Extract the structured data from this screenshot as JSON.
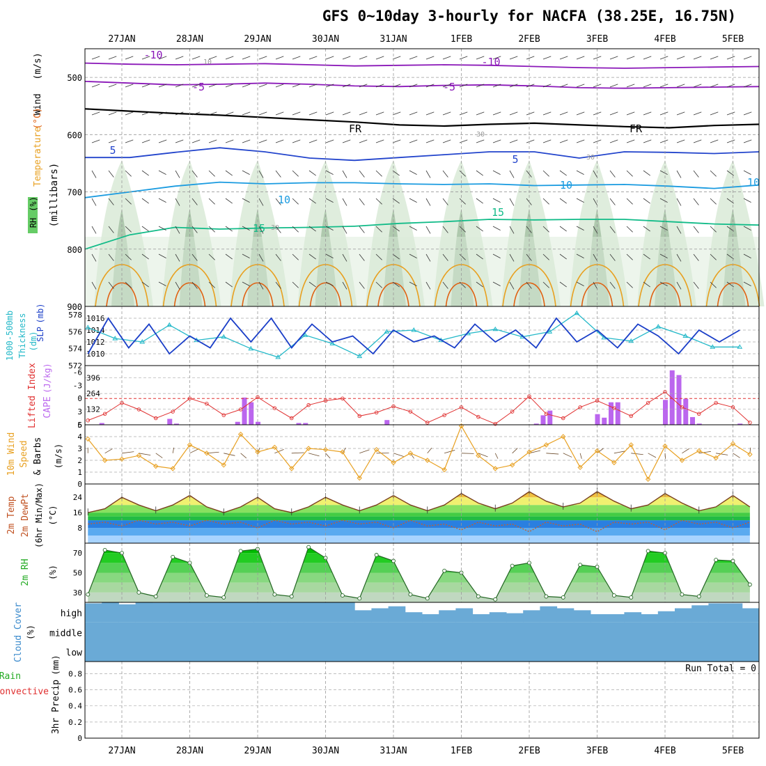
{
  "title": "GFS 0~10day 3-hourly for NACFA (38.25E, 16.75N)",
  "date_labels": [
    "27JAN",
    "28JAN",
    "29JAN",
    "30JAN",
    "31JAN",
    "1FEB",
    "2FEB",
    "3FEB",
    "4FEB",
    "5FEB"
  ],
  "colors": {
    "rh_fill": "#dcebd9",
    "rh_mid": "#8fb08f",
    "rh_high": "#66cc66",
    "temp_purple": "#8a17b8",
    "temp_blue": "#2244cc",
    "temp_cyan": "#1a9be0",
    "temp_green": "#11bb88",
    "temp_orange": "#e8a020",
    "temp_red": "#e06010",
    "thickness": "#22b8c8",
    "slp": "#1a3ec8",
    "lifted": "#e03030",
    "cape": "#bb66ee",
    "wind10": "#e8a020",
    "cloud": "#6aaad6",
    "dewpt": "#c06030"
  },
  "chart_data": [
    {
      "type": "contour",
      "name": "upper-air",
      "title": "",
      "panel_labels": [
        "Wind",
        "(m/s)",
        "Temperature",
        "(°C)",
        "RH",
        "(%)",
        "(millibars)"
      ],
      "yaxis_label": "(millibars)",
      "ylim": [
        450,
        900
      ],
      "yticks": [
        500,
        600,
        700,
        800,
        900
      ],
      "inverted": true,
      "contour_labels": [
        "-10",
        "-10",
        "-5",
        "-5",
        "FR",
        "FR",
        "5",
        "5",
        "10",
        "10",
        "10",
        "15",
        "15",
        "30",
        "10",
        "30",
        "30"
      ],
      "isotherms": [
        {
          "label": "-10",
          "values": [
            475,
            477,
            478,
            477,
            476,
            478,
            480,
            479,
            478,
            479,
            481,
            483,
            484,
            483,
            482,
            481
          ]
        },
        {
          "label": "-5",
          "values": [
            507,
            510,
            513,
            512,
            510,
            512,
            515,
            516,
            514,
            513,
            515,
            518,
            519,
            518,
            517,
            516
          ]
        },
        {
          "label": "FR",
          "values": [
            555,
            559,
            563,
            566,
            570,
            574,
            578,
            583,
            585,
            582,
            580,
            583,
            586,
            588,
            584,
            582
          ]
        },
        {
          "label": "5",
          "values": [
            640,
            640,
            631,
            623,
            630,
            641,
            645,
            640,
            635,
            630,
            630,
            641,
            630,
            631,
            633,
            630
          ]
        },
        {
          "label": "10",
          "values": [
            710,
            700,
            690,
            683,
            686,
            684,
            684,
            686,
            687,
            686,
            689,
            688,
            687,
            690,
            694,
            688
          ]
        },
        {
          "label": "15",
          "values": [
            800,
            775,
            762,
            765,
            763,
            762,
            760,
            755,
            752,
            748,
            749,
            748,
            748,
            752,
            756,
            758
          ]
        }
      ],
      "x_days": [
        0.5,
        1.1,
        1.7,
        2.3,
        2.9,
        3.5,
        4.1,
        4.7,
        5.3,
        5.9,
        6.5,
        7.1,
        7.7,
        8.3,
        8.9,
        9.5
      ]
    },
    {
      "type": "line",
      "name": "thickness-slp",
      "panel_labels": [
        "1000-500mb",
        "Thickness",
        "(dm)",
        "SLP",
        "(mb)"
      ],
      "left_axis": {
        "label": "1000-500mb Thickness (dm)",
        "ylim": [
          572,
          579
        ],
        "ticks": [
          572,
          574,
          576,
          578
        ]
      },
      "right_axis": {
        "label": "SLP (mb)",
        "ylim": [
          1008,
          1018
        ],
        "ticks": [
          1010,
          1012,
          1014,
          1016
        ]
      },
      "series": [
        {
          "name": "Thickness",
          "axis": "left",
          "x_days": [
            0,
            0.4,
            0.8,
            1.2,
            1.6,
            2.0,
            2.4,
            2.8,
            3.2,
            3.6,
            4.0,
            4.4,
            4.8,
            5.2,
            5.6,
            6.0,
            6.4,
            6.8,
            7.2,
            7.6,
            8.0,
            8.4,
            8.8,
            9.2,
            9.6
          ],
          "values": [
            576.5,
            575.2,
            574.8,
            576.8,
            575.0,
            575.4,
            574.0,
            573.0,
            575.6,
            574.6,
            573.1,
            576.0,
            576.2,
            575.0,
            575.8,
            576.3,
            575.4,
            576.0,
            578.2,
            575.3,
            574.9,
            576.6,
            575.5,
            574.2,
            574.2
          ]
        },
        {
          "name": "SLP",
          "axis": "right",
          "x_days": [
            0,
            0.3,
            0.6,
            0.9,
            1.2,
            1.5,
            1.8,
            2.1,
            2.4,
            2.7,
            3.0,
            3.3,
            3.6,
            3.9,
            4.2,
            4.5,
            4.8,
            5.1,
            5.4,
            5.7,
            6.0,
            6.3,
            6.6,
            6.9,
            7.2,
            7.5,
            7.8,
            8.1,
            8.4,
            8.7,
            9.0,
            9.3,
            9.6
          ],
          "values": [
            1010,
            1016,
            1011,
            1015,
            1010,
            1013,
            1011,
            1016,
            1012,
            1016,
            1011,
            1015,
            1012,
            1013,
            1010,
            1014,
            1012,
            1013,
            1011,
            1015,
            1012,
            1014,
            1011,
            1016,
            1012,
            1014,
            1011,
            1015,
            1013,
            1010,
            1014,
            1012,
            1014
          ]
        }
      ]
    },
    {
      "type": "bar",
      "name": "lifted-cape",
      "panel_labels": [
        "Lifted Index",
        "CAPE",
        "(J/kg)"
      ],
      "left_axis": {
        "label": "Lifted Index",
        "ylim": [
          6,
          -7.5
        ],
        "ticks": [
          -6,
          -3,
          0,
          3,
          6
        ]
      },
      "right_axis": {
        "label": "CAPE (J/kg)",
        "ylim": [
          0,
          500
        ],
        "ticks": [
          132,
          264,
          396
        ]
      },
      "series": [
        {
          "name": "Lifted Index",
          "type": "line",
          "x_days": [
            0,
            0.25,
            0.5,
            0.75,
            1,
            1.25,
            1.5,
            1.75,
            2,
            2.25,
            2.5,
            2.75,
            3,
            3.25,
            3.5,
            3.75,
            4,
            4.25,
            4.5,
            4.75,
            5,
            5.25,
            5.5,
            5.75,
            6,
            6.25,
            6.5,
            6.75,
            7,
            7.25,
            7.5,
            7.75,
            8,
            8.25,
            8.5,
            8.75,
            9,
            9.25,
            9.5,
            9.75
          ],
          "values": [
            5,
            3.5,
            1,
            2.5,
            4.5,
            3,
            0,
            1.2,
            3.8,
            2.5,
            -0.3,
            2.2,
            4.5,
            1.5,
            0.5,
            0,
            4,
            3.2,
            1.8,
            3,
            5.5,
            3.8,
            2,
            4.2,
            5.8,
            3,
            -0.5,
            3.5,
            4.5,
            2,
            0.5,
            2.2,
            4,
            1,
            -1.5,
            2,
            3.5,
            1,
            2,
            5.5
          ]
        },
        {
          "name": "CAPE",
          "type": "bar",
          "x_days": [
            0.2,
            1.2,
            1.3,
            2.2,
            2.3,
            2.4,
            2.5,
            3.1,
            3.2,
            4.4,
            6.6,
            6.7,
            6.8,
            7.5,
            7.6,
            7.7,
            7.8,
            8.5,
            8.6,
            8.7,
            8.8,
            8.9,
            9.0,
            9.6
          ],
          "values": [
            15,
            50,
            10,
            25,
            230,
            190,
            25,
            15,
            15,
            40,
            10,
            80,
            120,
            90,
            60,
            190,
            190,
            210,
            460,
            420,
            220,
            65,
            10,
            10
          ]
        }
      ],
      "reference_line": 0
    },
    {
      "type": "line",
      "name": "wind10m",
      "panel_labels": [
        "10m Wind",
        "Speed",
        "& Barbs",
        "(m/s)"
      ],
      "ylabel": "10m Wind Speed & Barbs (m/s)",
      "ylim": [
        0,
        5
      ],
      "yticks": [
        0,
        1,
        2,
        3,
        4,
        5
      ],
      "series": [
        {
          "name": "Speed",
          "x_days": [
            0,
            0.25,
            0.5,
            0.75,
            1,
            1.25,
            1.5,
            1.75,
            2,
            2.25,
            2.5,
            2.75,
            3,
            3.25,
            3.5,
            3.75,
            4,
            4.25,
            4.5,
            4.75,
            5,
            5.25,
            5.5,
            5.75,
            6,
            6.25,
            6.5,
            6.75,
            7,
            7.25,
            7.5,
            7.75,
            8,
            8.25,
            8.5,
            8.75,
            9,
            9.25,
            9.5,
            9.75
          ],
          "values": [
            3.8,
            2.0,
            2.1,
            2.4,
            1.5,
            1.3,
            3.3,
            2.6,
            1.6,
            4.2,
            2.7,
            3.1,
            1.3,
            3.0,
            2.9,
            2.7,
            0.5,
            2.9,
            1.8,
            2.6,
            2.0,
            1.2,
            4.9,
            2.4,
            1.3,
            1.6,
            2.7,
            3.3,
            4.0,
            1.4,
            2.8,
            1.8,
            3.3,
            0.4,
            3.2,
            2.0,
            2.8,
            2.2,
            3.4,
            2.5
          ]
        }
      ]
    },
    {
      "type": "area",
      "name": "temp2m",
      "panel_labels": [
        "2m Temp",
        "2m DewPt",
        "(6hr Min/Max)",
        "(°C)"
      ],
      "ylabel": "2m Temp 2m DewPt (6hr Min/Max) (°C)",
      "ylim": [
        0,
        31
      ],
      "yticks": [
        8,
        16,
        24
      ],
      "series": [
        {
          "name": "Temp",
          "x_days": [
            0,
            0.25,
            0.5,
            0.75,
            1,
            1.25,
            1.5,
            1.75,
            2,
            2.25,
            2.5,
            2.75,
            3,
            3.25,
            3.5,
            3.75,
            4,
            4.25,
            4.5,
            4.75,
            5,
            5.25,
            5.5,
            5.75,
            6,
            6.25,
            6.5,
            6.75,
            7,
            7.25,
            7.5,
            7.75,
            8,
            8.25,
            8.5,
            8.75,
            9,
            9.25,
            9.5,
            9.75
          ],
          "values": [
            16,
            18,
            24,
            20,
            17,
            20,
            25,
            19,
            16,
            19,
            24,
            18,
            16,
            19,
            24,
            20,
            17,
            20,
            25,
            20,
            17,
            20,
            26,
            21,
            18,
            21,
            27,
            22,
            19,
            21,
            27,
            22,
            18,
            20,
            26,
            21,
            17,
            19,
            25,
            19
          ]
        },
        {
          "name": "DewPt",
          "x_days": [
            0,
            0.25,
            0.5,
            0.75,
            1,
            1.25,
            1.5,
            1.75,
            2,
            2.25,
            2.5,
            2.75,
            3,
            3.25,
            3.5,
            3.75,
            4,
            4.25,
            4.5,
            4.75,
            5,
            5.25,
            5.5,
            5.75,
            6,
            6.25,
            6.5,
            6.75,
            7,
            7.25,
            7.5,
            7.75,
            8,
            8.25,
            8.5,
            8.75,
            9,
            9.25,
            9.5,
            9.75
          ],
          "values": [
            10,
            11,
            9,
            12,
            10,
            11,
            9,
            12,
            10,
            11,
            8,
            12,
            10,
            11,
            9,
            12,
            10,
            11,
            8,
            12,
            9,
            10,
            7,
            11,
            9,
            10,
            6,
            11,
            9,
            10,
            6,
            11,
            10,
            11,
            7,
            12,
            10,
            11,
            8,
            11
          ]
        }
      ]
    },
    {
      "type": "area",
      "name": "rh2m",
      "panel_labels": [
        "2m RH",
        "(%)"
      ],
      "ylabel": "2m RH (%)",
      "ylim": [
        20,
        80
      ],
      "yticks": [
        30,
        50,
        70
      ],
      "series": [
        {
          "name": "RH",
          "x_days": [
            0,
            0.25,
            0.5,
            0.75,
            1,
            1.25,
            1.5,
            1.75,
            2,
            2.25,
            2.5,
            2.75,
            3,
            3.25,
            3.5,
            3.75,
            4,
            4.25,
            4.5,
            4.75,
            5,
            5.25,
            5.5,
            5.75,
            6,
            6.25,
            6.5,
            6.75,
            7,
            7.25,
            7.5,
            7.75,
            8,
            8.25,
            8.5,
            8.75,
            9,
            9.25,
            9.5,
            9.75
          ],
          "values": [
            28,
            73,
            70,
            30,
            26,
            66,
            60,
            27,
            25,
            72,
            74,
            28,
            26,
            76,
            65,
            27,
            24,
            68,
            62,
            28,
            24,
            52,
            50,
            26,
            23,
            57,
            60,
            26,
            25,
            58,
            56,
            27,
            25,
            72,
            70,
            28,
            26,
            63,
            62,
            38
          ]
        }
      ]
    },
    {
      "type": "heatmap",
      "name": "cloud",
      "panel_labels": [
        "Cloud Cover",
        "(%)"
      ],
      "ylabel": "Cloud Cover (%)",
      "levels": [
        "high",
        "middle",
        "low"
      ],
      "high_x_days": [
        0,
        0.25,
        0.5,
        0.75,
        1,
        1.25,
        1.5,
        1.75,
        2,
        2.25,
        2.5,
        2.75,
        3,
        3.25,
        3.5,
        3.75,
        4,
        4.25,
        4.5,
        4.75,
        5,
        5.25,
        5.5,
        5.75,
        6,
        6.25,
        6.5,
        6.75,
        7,
        7.25,
        7.5,
        7.75,
        8,
        8.25,
        8.5,
        8.75,
        9,
        9.25,
        9.5,
        9.75
      ],
      "high_values": [
        95,
        100,
        90,
        100,
        98,
        100,
        100,
        100,
        100,
        100,
        100,
        100,
        100,
        100,
        100,
        100,
        60,
        70,
        80,
        50,
        40,
        60,
        70,
        40,
        50,
        45,
        60,
        80,
        70,
        60,
        40,
        40,
        50,
        40,
        55,
        70,
        85,
        95,
        95,
        70
      ],
      "middle_value": 100,
      "low_value": 100
    },
    {
      "type": "bar",
      "name": "precip",
      "panel_labels": [
        "Total / Rain",
        "Convective",
        "3hr Precip",
        "(mm)"
      ],
      "ylabel": "3hr Precip (mm)",
      "ylim": [
        0,
        0.95
      ],
      "yticks": [
        0,
        0.2,
        0.4,
        0.6,
        0.8
      ],
      "annotation": "Run Total = 0",
      "values": []
    }
  ]
}
